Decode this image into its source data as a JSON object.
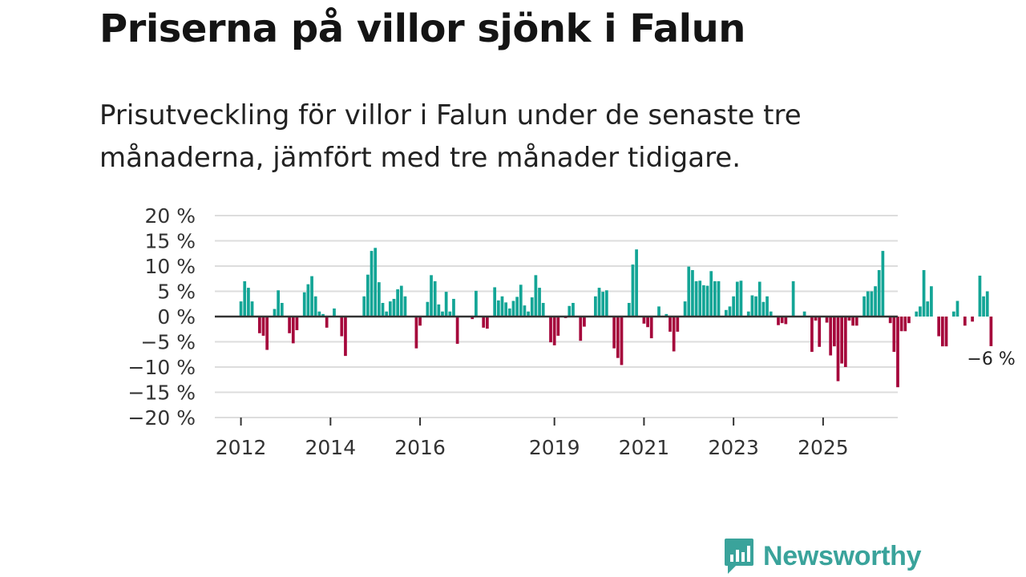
{
  "title": "Priserna på villor sjönk i Falun",
  "subtitle": "Prisutveckling för villor i Falun under de senaste tre månaderna, jämfört med tre månader tidigare.",
  "brand": {
    "name": "Newsworthy",
    "icon": "chat-bars-icon"
  },
  "colors": {
    "positive": "#13a596",
    "negative": "#a5063b",
    "grid": "#dddddd",
    "zero": "#333333",
    "brand": "#3aa39b"
  },
  "chart_data": {
    "type": "bar",
    "title": "Priserna på villor sjönk i Falun",
    "ylim": [
      -20,
      20
    ],
    "yticks": [
      20,
      15,
      10,
      5,
      0,
      -5,
      -10,
      -15,
      -20
    ],
    "ytick_labels": [
      "20 %",
      "15 %",
      "10 %",
      "5 %",
      "0 %",
      "−5 %",
      "−10 %",
      "−15 %",
      "−20 %"
    ],
    "xlim": [
      "2011-06",
      "2026-09"
    ],
    "xticks": [
      {
        "label": "2012",
        "month": "2012-01"
      },
      {
        "label": "2014",
        "month": "2014-01"
      },
      {
        "label": "2016",
        "month": "2016-01"
      },
      {
        "label": "2019",
        "month": "2019-01"
      },
      {
        "label": "2021",
        "month": "2021-01"
      },
      {
        "label": "2023",
        "month": "2023-01"
      },
      {
        "label": "2025",
        "month": "2025-01"
      }
    ],
    "start_month": "2012-01",
    "unit": "%",
    "values": [
      3.0,
      7.0,
      5.7,
      3.0,
      null,
      -3.3,
      -3.8,
      -6.6,
      null,
      1.5,
      5.2,
      2.7,
      null,
      -3.3,
      -5.3,
      -2.7,
      null,
      4.8,
      6.4,
      8.0,
      4.0,
      1.0,
      0.5,
      -2.2,
      null,
      1.6,
      null,
      -3.9,
      -7.8,
      null,
      null,
      null,
      null,
      4.0,
      8.3,
      13.0,
      13.6,
      6.8,
      2.7,
      1.0,
      3.0,
      3.5,
      5.4,
      6.1,
      4.0,
      null,
      null,
      -6.3,
      -1.8,
      null,
      2.9,
      8.2,
      7.0,
      2.4,
      1.0,
      4.9,
      1.0,
      3.5,
      -5.4,
      null,
      null,
      null,
      -0.5,
      5.1,
      null,
      -2.2,
      -2.4,
      null,
      5.8,
      3.2,
      4.0,
      2.8,
      1.6,
      3.1,
      3.9,
      6.3,
      2.2,
      1.0,
      3.8,
      8.2,
      5.7,
      2.7,
      null,
      -5.1,
      -5.7,
      -3.8,
      null,
      -0.3,
      2.1,
      2.7,
      null,
      -4.8,
      -2.0,
      null,
      null,
      4.0,
      5.7,
      4.9,
      5.2,
      null,
      -6.3,
      -8.2,
      -9.6,
      null,
      2.7,
      10.3,
      13.3,
      null,
      -1.4,
      -2.1,
      -4.3,
      null,
      2.0,
      null,
      0.5,
      -3.0,
      -6.9,
      -3.0,
      null,
      3.0,
      9.9,
      9.2,
      7.0,
      7.1,
      6.2,
      6.1,
      9.0,
      7.0,
      7.0,
      null,
      1.3,
      2.0,
      4.0,
      6.9,
      7.1,
      null,
      1.0,
      4.2,
      4.0,
      6.9,
      2.9,
      4.0,
      1.0,
      null,
      -1.7,
      -1.3,
      -1.5,
      null,
      7.0,
      null,
      null,
      1.0,
      null,
      -7.0,
      -0.8,
      -6.0,
      null,
      -1.2,
      -7.7,
      -5.9,
      -12.8,
      -9.3,
      -10.0,
      -0.8,
      -1.8,
      -1.8,
      null,
      4.0,
      5.0,
      5.0,
      6.0,
      9.2,
      13.0,
      null,
      -1.3,
      -7.0,
      -14.0,
      -2.9,
      -2.9,
      -1.3,
      null,
      1.0,
      2.0,
      9.2,
      3.0,
      6.0,
      null,
      -3.9,
      -5.9,
      -5.9,
      null,
      1.0,
      3.1,
      null,
      -1.8,
      null,
      -1.0,
      null,
      8.1,
      4.0,
      5.0,
      -6.0
    ],
    "annotation": {
      "text": "−6 %",
      "value": -6
    }
  }
}
